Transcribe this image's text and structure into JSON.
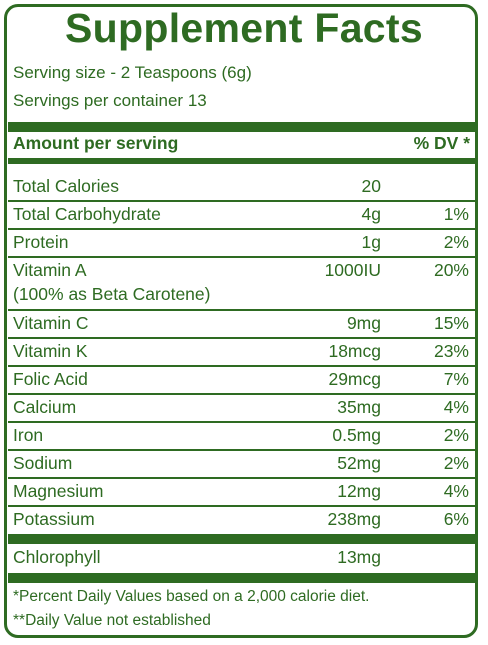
{
  "title": "Supplement Facts",
  "serving_size": "Serving size - 2 Teaspoons (6g)",
  "servings_per_container": "Servings per container 13",
  "header": {
    "amount": "Amount per serving",
    "dv": "% DV *"
  },
  "rows": [
    {
      "name": "Total Calories",
      "amount": "20",
      "dv": ""
    },
    {
      "name": "Total Carbohydrate",
      "amount": "4g",
      "dv": "1%"
    },
    {
      "name": "Protein",
      "amount": "1g",
      "dv": "2%"
    },
    {
      "name": "Vitamin A",
      "sub": "(100% as Beta Carotene)",
      "amount": "1000IU",
      "dv": "20%"
    },
    {
      "name": "Vitamin C",
      "amount": "9mg",
      "dv": "15%"
    },
    {
      "name": "Vitamin K",
      "amount": "18mcg",
      "dv": "23%"
    },
    {
      "name": "Folic Acid",
      "amount": "29mcg",
      "dv": "7%"
    },
    {
      "name": "Calcium",
      "amount": "35mg",
      "dv": "4%"
    },
    {
      "name": "Iron",
      "amount": "0.5mg",
      "dv": "2%"
    },
    {
      "name": "Sodium",
      "amount": "52mg",
      "dv": "2%"
    },
    {
      "name": "Magnesium",
      "amount": "12mg",
      "dv": "4%"
    },
    {
      "name": "Potassium",
      "amount": "238mg",
      "dv": "6%"
    },
    {
      "name": "Chlorophyll",
      "amount": "13mg",
      "dv": ""
    }
  ],
  "footnotes": [
    "*Percent Daily Values based on a 2,000 calorie diet.",
    "**Daily Value not established"
  ],
  "colors": {
    "accent": "#2e6b22",
    "background": "#ffffff"
  }
}
